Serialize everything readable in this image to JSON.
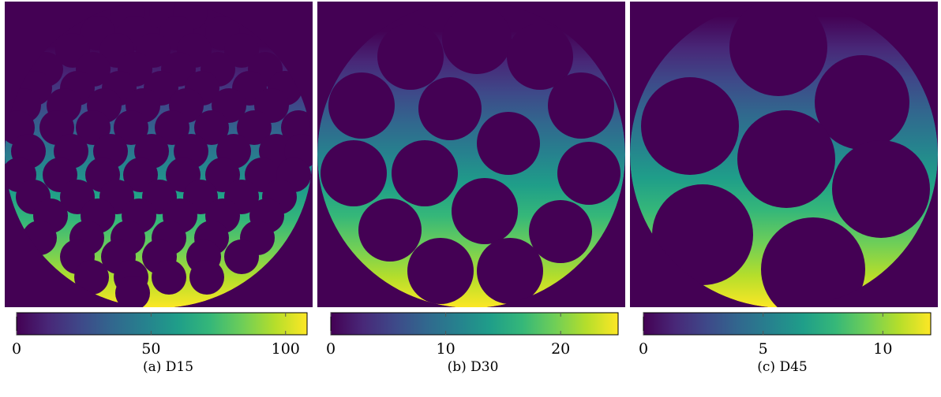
{
  "colors": {
    "colormap": [
      "#440154",
      "#482878",
      "#3e4989",
      "#31688e",
      "#26828e",
      "#1f9e89",
      "#35b779",
      "#6ece58",
      "#b5de2b",
      "#fde725"
    ],
    "particle": "#440154",
    "background": "#440154"
  },
  "panels": [
    {
      "caption": "(a) D15",
      "colorbar": {
        "min": 0,
        "max": 108,
        "ticks": [
          0,
          50,
          100
        ],
        "tick_labels": [
          "0",
          "50",
          "100"
        ]
      },
      "field_max": 108
    },
    {
      "caption": "(b) D30",
      "colorbar": {
        "min": 0,
        "max": 25,
        "ticks": [
          0,
          10,
          20
        ],
        "tick_labels": [
          "0",
          "10",
          "20"
        ]
      },
      "field_max": 25
    },
    {
      "caption": "(c) D45",
      "colorbar": {
        "min": 0,
        "max": 12,
        "ticks": [
          0,
          5,
          10
        ],
        "tick_labels": [
          "0",
          "5",
          "10"
        ]
      },
      "field_max": 12
    }
  ]
}
